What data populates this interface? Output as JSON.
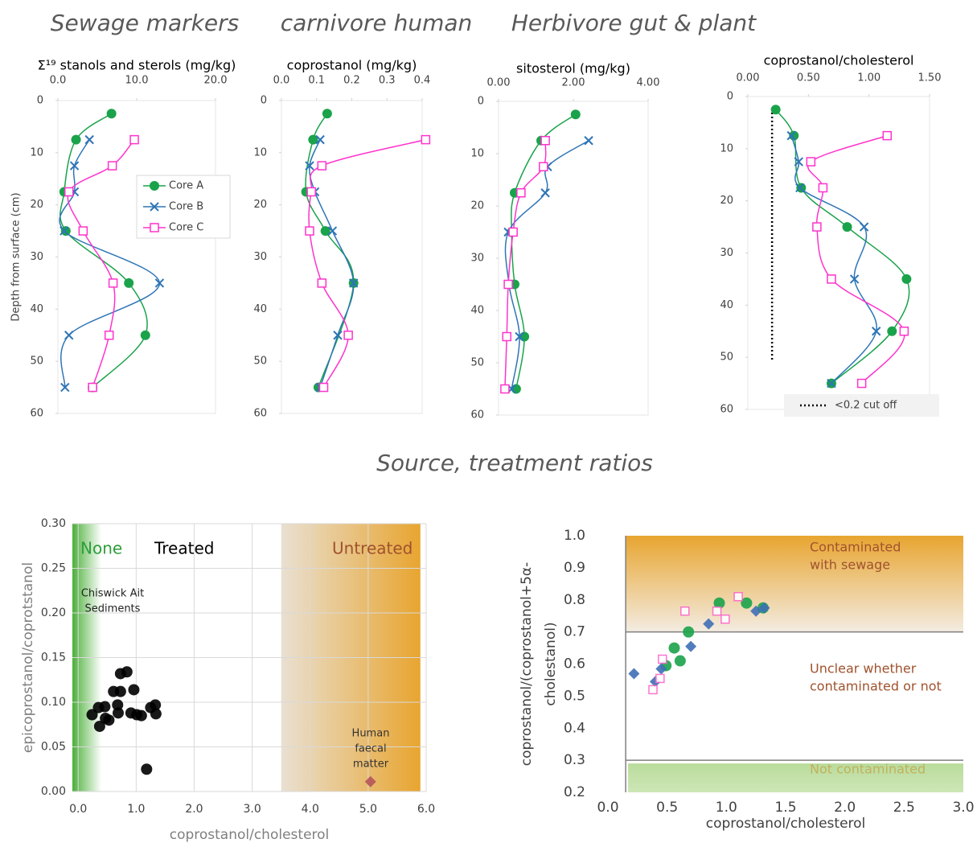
{
  "headings": [
    "Sewage markers",
    "carnivore human",
    "Herbivore gut & plant",
    "Source, treatment ratios"
  ],
  "chart_data": [
    {
      "type": "profile",
      "title": "Σ¹⁹ stanols and sterols  (mg/kg)",
      "ylabel": "Depth from surface (cm)",
      "xlim": [
        0,
        20
      ],
      "xticks": [
        {
          "value": 0,
          "label": "0.0"
        },
        {
          "value": 10,
          "label": "10.0"
        },
        {
          "value": 20,
          "label": "20.0"
        }
      ],
      "ylim": [
        0,
        60
      ],
      "yticks": [
        0,
        10,
        20,
        30,
        40,
        50,
        60
      ],
      "legend": true,
      "series": [
        {
          "name": "Core A",
          "color": "#1aa34a",
          "marker": "circle",
          "x": [
            6.8,
            2.3,
            0.8,
            1.0,
            9.0,
            11.1,
            4.4
          ],
          "y": [
            2.5,
            7.5,
            17.5,
            25,
            35,
            45,
            55
          ]
        },
        {
          "name": "Core B",
          "color": "#2e75b6",
          "marker": "x",
          "x": [
            4.0,
            2.1,
            2.1,
            0.8,
            12.9,
            1.4,
            0.9
          ],
          "y": [
            7.5,
            12.5,
            17.5,
            25,
            35,
            45,
            55
          ]
        },
        {
          "name": "Core C",
          "color": "#ff33cc",
          "marker": "square",
          "x": [
            9.7,
            6.9,
            1.4,
            3.2,
            7.0,
            6.5,
            4.4
          ],
          "y": [
            7.5,
            12.5,
            17.5,
            25,
            35,
            45,
            55
          ]
        }
      ]
    },
    {
      "type": "profile",
      "title": "coprostanol (mg/kg)",
      "xlim": [
        0,
        0.4
      ],
      "xticks": [
        {
          "value": 0,
          "label": "0.0"
        },
        0.1,
        0.2,
        0.3,
        0.4
      ],
      "ylim": [
        0,
        60
      ],
      "yticks": [
        0,
        10,
        20,
        30,
        40,
        50,
        60
      ],
      "series": [
        {
          "color": "#1aa34a",
          "marker": "circle",
          "x": [
            0.13,
            0.09,
            0.07,
            0.125,
            0.205,
            0.105
          ],
          "y": [
            2.5,
            7.5,
            17.5,
            25,
            35,
            55
          ]
        },
        {
          "color": "#2e75b6",
          "marker": "x",
          "x": [
            0.11,
            0.08,
            0.095,
            0.145,
            0.205,
            0.16,
            0.11
          ],
          "y": [
            7.5,
            12.5,
            17.5,
            25,
            35,
            45,
            55
          ]
        },
        {
          "color": "#ff33cc",
          "marker": "square",
          "x": [
            0.41,
            0.115,
            0.085,
            0.08,
            0.115,
            0.19,
            0.12
          ],
          "y": [
            7.5,
            12.5,
            17.5,
            25,
            35,
            45,
            55
          ]
        }
      ]
    },
    {
      "type": "profile",
      "title": "sitosterol (mg/kg)",
      "xlim": [
        0,
        4
      ],
      "xticks": [
        {
          "value": 0,
          "label": "0.00"
        },
        {
          "value": 2,
          "label": "2.00"
        },
        {
          "value": 4,
          "label": "4.00"
        }
      ],
      "ylim": [
        0,
        60
      ],
      "yticks": [
        0,
        10,
        20,
        30,
        40,
        50,
        60
      ],
      "series": [
        {
          "color": "#1aa34a",
          "marker": "circle",
          "x": [
            2.06,
            1.14,
            0.43,
            0.35,
            0.43,
            0.69,
            0.47
          ],
          "y": [
            2.5,
            7.5,
            17.5,
            25,
            35,
            45,
            55
          ]
        },
        {
          "color": "#2e75b6",
          "marker": "x",
          "x": [
            2.41,
            1.31,
            1.25,
            0.26,
            0.28,
            0.56,
            0.35
          ],
          "y": [
            7.5,
            12.5,
            17.5,
            25,
            35,
            45,
            55
          ]
        },
        {
          "color": "#ff33cc",
          "marker": "square",
          "x": [
            1.25,
            1.2,
            0.6,
            0.39,
            0.26,
            0.22,
            0.17
          ],
          "y": [
            7.5,
            12.5,
            17.5,
            25,
            35,
            45,
            55
          ]
        }
      ]
    },
    {
      "type": "profile",
      "title": "coprostanol/cholesterol",
      "xlim": [
        0,
        1.5
      ],
      "xticks": [
        {
          "value": 0,
          "label": "0.00"
        },
        {
          "value": 0.5,
          "label": "0.50"
        },
        {
          "value": 1,
          "label": "1.00"
        },
        {
          "value": 1.5,
          "label": "1.50"
        }
      ],
      "ylim": [
        0,
        60
      ],
      "yticks": [
        0,
        10,
        20,
        30,
        40,
        50,
        60
      ],
      "reference": {
        "x": 0.2,
        "label": "<0.2 cut off"
      },
      "series": [
        {
          "color": "#1aa34a",
          "marker": "circle",
          "x": [
            0.23,
            0.38,
            0.44,
            0.82,
            1.31,
            1.19,
            0.69
          ],
          "y": [
            2.5,
            7.5,
            17.5,
            25,
            35,
            45,
            55
          ]
        },
        {
          "color": "#2e75b6",
          "marker": "x",
          "x": [
            0.36,
            0.42,
            0.43,
            0.96,
            0.88,
            1.06,
            0.69
          ],
          "y": [
            7.5,
            12.5,
            17.5,
            25,
            35,
            45,
            55
          ]
        },
        {
          "color": "#ff33cc",
          "marker": "square",
          "x": [
            1.15,
            0.52,
            0.62,
            0.57,
            0.69,
            1.29,
            0.94
          ],
          "y": [
            7.5,
            12.5,
            17.5,
            25,
            35,
            45,
            55
          ]
        }
      ]
    },
    {
      "type": "scatter",
      "xlabel": "coprostanol/cholesterol",
      "ylabel": "epicoprostanol/coprotstanol",
      "xlim": [
        -0.1,
        6.0
      ],
      "xticks": [
        {
          "value": 0,
          "label": "0.0"
        },
        {
          "value": 1,
          "label": "1.0"
        },
        {
          "value": 2,
          "label": "2.0"
        },
        {
          "value": 3,
          "label": "3.0"
        },
        {
          "value": 4,
          "label": "4.0"
        },
        {
          "value": 5,
          "label": "5.0"
        },
        {
          "value": 6,
          "label": "6.0"
        }
      ],
      "ylim": [
        0,
        0.3
      ],
      "yticks": [
        {
          "value": 0,
          "label": "0.00"
        },
        {
          "value": 0.05,
          "label": "0.05"
        },
        {
          "value": 0.1,
          "label": "0.10"
        },
        {
          "value": 0.15,
          "label": "0.15"
        },
        {
          "value": 0.2,
          "label": "0.20"
        },
        {
          "value": 0.25,
          "label": "0.25"
        },
        {
          "value": 0.3,
          "label": "0.30"
        }
      ],
      "grid": true,
      "bands": [
        {
          "x": [
            -0.1,
            0.4
          ],
          "colors": [
            "#4caf3a",
            "#ffffff"
          ],
          "direction": "horizontal"
        },
        {
          "x": [
            3.5,
            5.9
          ],
          "colors": [
            "#e9e0d2",
            "#e8a530"
          ],
          "direction": "horizontal"
        }
      ],
      "annotations": [
        {
          "text": [
            "None"
          ],
          "color": "#2e9e3a"
        },
        {
          "text": [
            "Treated"
          ],
          "color": "#000000"
        },
        {
          "text": [
            "Untreated"
          ],
          "color": "#a0522d"
        },
        {
          "text": [
            "Chiswick Ait",
            "Sediments"
          ],
          "color": "#222222"
        },
        {
          "text": [
            "Human",
            "faecal",
            "matter"
          ],
          "color": "#333333"
        }
      ],
      "series": [
        {
          "color": "#000000",
          "marker": "circle",
          "x": [
            0.24,
            0.35,
            0.37,
            0.46,
            0.47,
            0.53,
            0.61,
            0.68,
            0.69,
            0.73,
            0.73,
            0.84,
            0.96,
            0.91,
            1.01,
            1.09,
            1.25,
            1.33,
            1.34,
            1.18
          ],
          "values": [
            0.086,
            0.094,
            0.073,
            0.095,
            0.082,
            0.08,
            0.112,
            0.097,
            0.088,
            0.112,
            0.132,
            0.134,
            0.114,
            0.088,
            0.086,
            0.085,
            0.094,
            0.097,
            0.087,
            0.025
          ]
        },
        {
          "color": "#b5555a",
          "marker": "diamond",
          "x": [
            5.04
          ],
          "values": [
            0.011
          ]
        }
      ]
    },
    {
      "type": "scatter",
      "xlabel": "coprostanol/cholesterol",
      "ylabel": [
        "coprostanol/(coprostanol+5α-",
        "cholestanol)"
      ],
      "xlim": [
        0,
        3
      ],
      "xticks": [
        {
          "value": 0,
          "label": "0.0"
        },
        0.5,
        {
          "value": 1,
          "label": "1.0"
        },
        1.5,
        {
          "value": 2,
          "label": "2.0"
        },
        2.5,
        {
          "value": 3,
          "label": "3.0"
        }
      ],
      "ylim": [
        0.2,
        1.0
      ],
      "yticks": [
        0.2,
        0.3,
        0.4,
        0.5,
        0.6,
        0.7,
        0.8,
        0.9,
        {
          "value": 1,
          "label": "1.0"
        }
      ],
      "bands": [
        {
          "x": [
            0.15,
            3.0
          ],
          "y": [
            0.7,
            1.0
          ],
          "colors": [
            "#e8a530",
            "#f3ece2"
          ],
          "direction": "vertical"
        },
        {
          "x": [
            0.17,
            3.0
          ],
          "y": [
            0.2,
            0.29
          ],
          "colors": [
            "#b9dc9c",
            "#cde6b6"
          ],
          "direction": "vertical"
        }
      ],
      "lines": [
        {
          "x": [
            0.15,
            3.0
          ],
          "y": [
            0.7,
            0.7
          ]
        },
        {
          "x": [
            0.15,
            3.0
          ],
          "y": [
            0.3,
            0.3
          ]
        },
        {
          "x": [
            0.15,
            0.15
          ],
          "y": [
            0.2,
            1.0
          ]
        }
      ],
      "annotations": [
        {
          "text": [
            "Contaminated",
            "with sewage"
          ],
          "color": "#a0522d"
        },
        {
          "text": [
            "Unclear whether",
            "contaminated or not"
          ],
          "color": "#a0522d"
        },
        {
          "text": [
            "Not contaminated"
          ],
          "color": "#c2b15a"
        }
      ],
      "series": [
        {
          "color": "#1aa34a",
          "marker": "circle",
          "x": [
            0.94,
            1.17,
            1.31,
            0.68,
            0.56,
            0.61,
            0.49
          ],
          "values": [
            0.79,
            0.79,
            0.775,
            0.7,
            0.65,
            0.61,
            0.595
          ]
        },
        {
          "color": "#3f6fb5",
          "marker": "diamond",
          "x": [
            0.22,
            0.4,
            0.45,
            0.7,
            0.85,
            1.25,
            1.32
          ],
          "values": [
            0.57,
            0.545,
            0.585,
            0.655,
            0.725,
            0.765,
            0.775
          ]
        },
        {
          "color": "#ff66cc",
          "marker": "square",
          "x": [
            0.65,
            0.92,
            1.1,
            0.99,
            0.46,
            0.44,
            0.38
          ],
          "values": [
            0.765,
            0.765,
            0.81,
            0.74,
            0.615,
            0.555,
            0.52
          ]
        }
      ]
    }
  ]
}
